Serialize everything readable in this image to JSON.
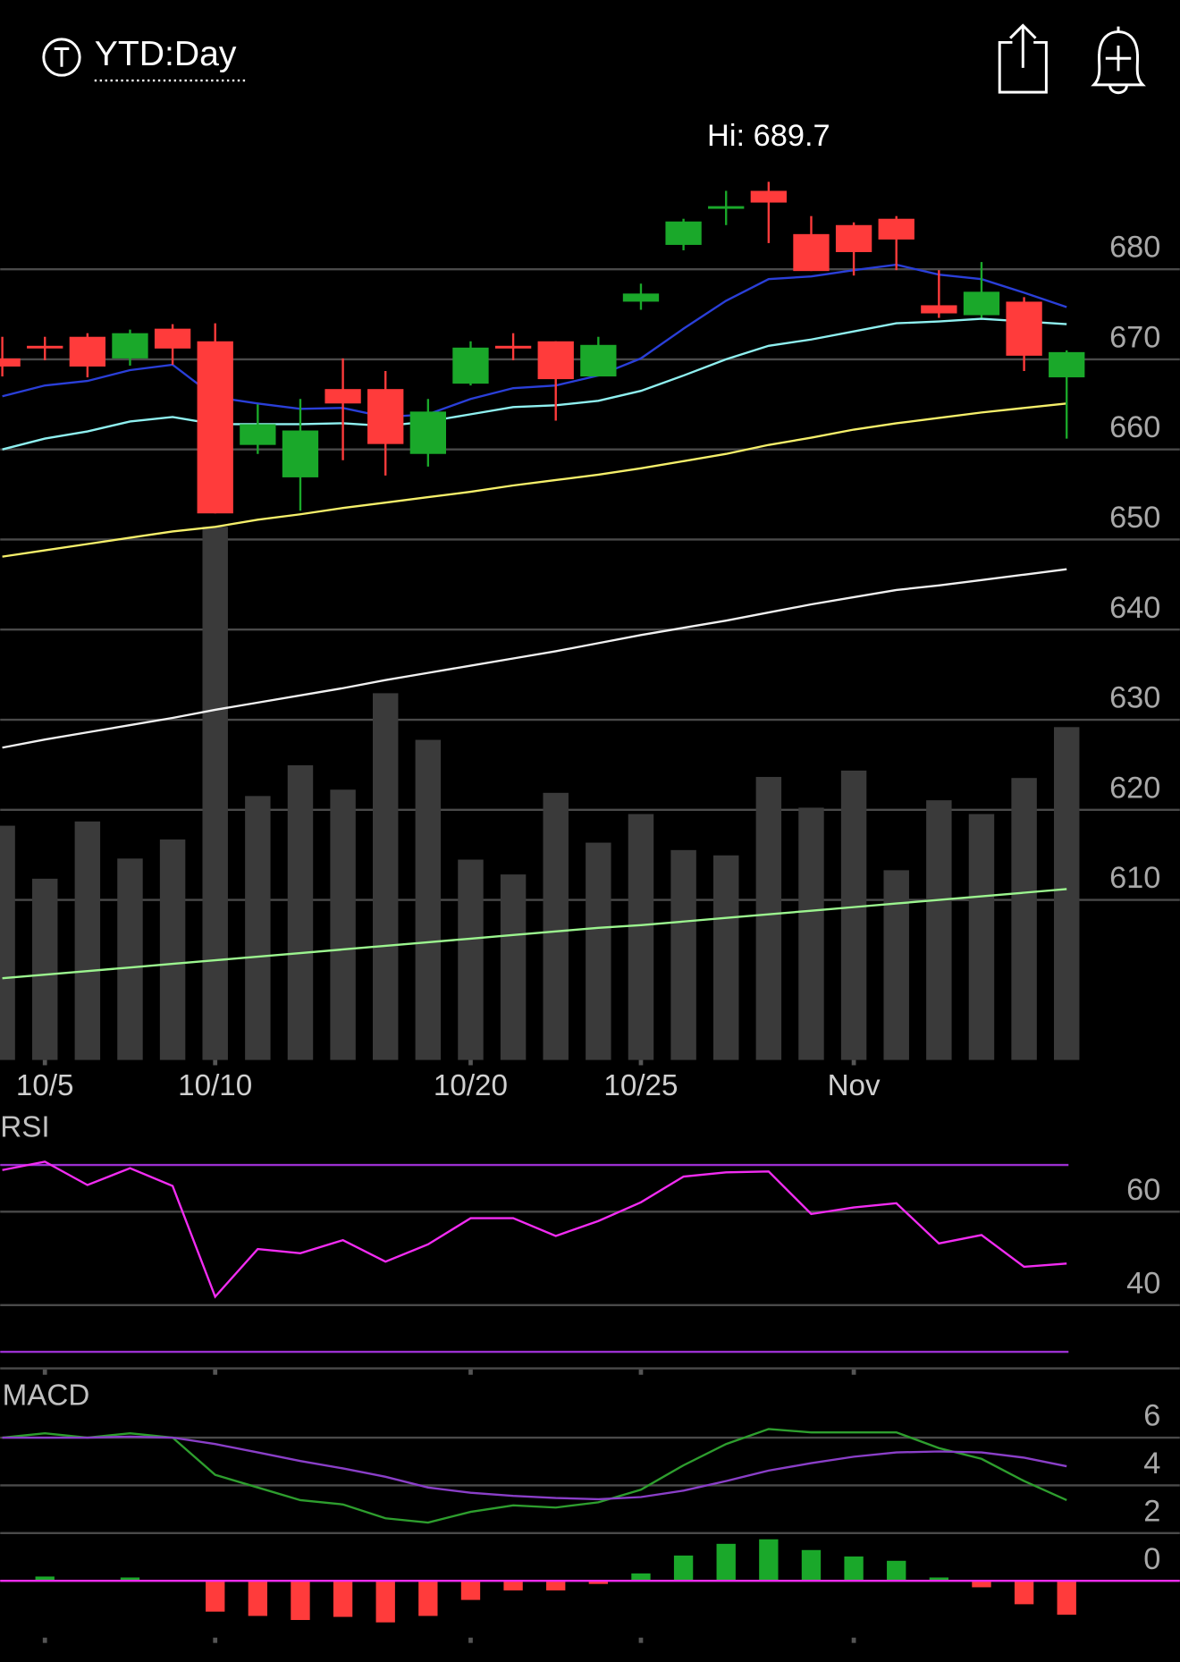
{
  "header": {
    "title": "YTD:Day"
  },
  "chart_data": [
    {
      "type": "candlestick",
      "annotation": "Hi: 689.7",
      "categories": [
        null,
        "10/5",
        null,
        null,
        null,
        "10/10",
        null,
        null,
        null,
        null,
        null,
        "10/20",
        null,
        null,
        null,
        "10/25",
        null,
        null,
        null,
        null,
        "Nov",
        null,
        null,
        null,
        null,
        null
      ],
      "open": [
        670.1,
        671.5,
        672.5,
        670.1,
        673.4,
        672.0,
        660.5,
        656.9,
        666.7,
        666.7,
        659.5,
        667.3,
        671.5,
        672.0,
        668.1,
        676.4,
        682.7,
        686.8,
        688.7,
        683.9,
        684.9,
        685.6,
        676.0,
        674.9,
        676.4,
        668.0
      ],
      "high": [
        672.5,
        672.5,
        672.9,
        673.3,
        673.9,
        674.0,
        665.0,
        665.6,
        670.1,
        668.7,
        665.6,
        672.0,
        672.9,
        672.0,
        672.5,
        678.4,
        685.6,
        688.7,
        689.7,
        685.9,
        685.2,
        685.9,
        679.9,
        680.8,
        676.9,
        671.0
      ],
      "low": [
        668.1,
        669.9,
        668.0,
        669.3,
        669.4,
        652.9,
        659.5,
        653.2,
        658.8,
        657.1,
        658.1,
        667.1,
        669.9,
        663.2,
        668.1,
        675.5,
        682.1,
        684.9,
        682.9,
        679.8,
        679.3,
        679.9,
        674.6,
        674.6,
        668.7,
        661.2
      ],
      "close": [
        669.2,
        671.3,
        669.2,
        672.9,
        671.2,
        652.9,
        662.8,
        662.1,
        665.1,
        660.6,
        664.2,
        671.3,
        671.2,
        667.8,
        671.6,
        677.3,
        685.3,
        687.0,
        687.4,
        679.8,
        681.9,
        683.3,
        675.1,
        677.5,
        670.4,
        670.8
      ],
      "up_color": "#1aa82a",
      "down_color": "#ff3b3b",
      "ylim": [
        592,
        692
      ],
      "yticks": [
        610,
        620,
        630,
        640,
        650,
        660,
        670,
        680
      ],
      "grid": true,
      "overlays": [
        {
          "color": "#2a3fd8",
          "values": [
            665.9,
            667.1,
            667.6,
            668.8,
            669.4,
            665.8,
            665.1,
            664.5,
            664.6,
            663.6,
            663.9,
            665.6,
            666.8,
            667.1,
            668.2,
            670.1,
            673.4,
            676.5,
            678.9,
            679.2,
            679.9,
            680.5,
            679.4,
            678.9,
            677.4,
            675.8
          ]
        },
        {
          "color": "#8ff0f0",
          "values": [
            660.0,
            661.2,
            662.0,
            663.1,
            663.6,
            662.8,
            662.8,
            662.8,
            662.9,
            662.6,
            663.1,
            663.9,
            664.7,
            664.9,
            665.4,
            666.5,
            668.2,
            670.0,
            671.5,
            672.2,
            673.1,
            674.0,
            674.2,
            674.5,
            674.2,
            673.9
          ]
        },
        {
          "color": "#f5ef6a",
          "values": [
            648.1,
            648.8,
            649.5,
            650.2,
            650.9,
            651.4,
            652.2,
            652.8,
            653.5,
            654.1,
            654.7,
            655.3,
            656.0,
            656.6,
            657.2,
            657.9,
            658.7,
            659.5,
            660.5,
            661.3,
            662.2,
            662.9,
            663.5,
            664.1,
            664.6,
            665.1
          ]
        },
        {
          "color": "#f0f0f0",
          "values": [
            626.9,
            627.8,
            628.6,
            629.4,
            630.2,
            631.1,
            631.9,
            632.7,
            633.5,
            634.4,
            635.2,
            636.0,
            636.8,
            637.6,
            638.5,
            639.4,
            640.2,
            641.0,
            641.9,
            642.8,
            643.6,
            644.4,
            644.9,
            645.5,
            646.1,
            646.7
          ]
        },
        {
          "color": "#9cf58f",
          "values": [
            601.3,
            601.7,
            602.1,
            602.5,
            602.9,
            603.3,
            603.7,
            604.1,
            604.5,
            604.9,
            605.3,
            605.7,
            606.1,
            606.5,
            606.9,
            607.2,
            607.6,
            608.0,
            608.4,
            608.8,
            609.2,
            609.6,
            610.0,
            610.4,
            610.8,
            611.2
          ]
        }
      ],
      "volume": {
        "color": "#3a3a3a",
        "values": [
          221,
          171,
          225,
          190,
          208,
          503,
          249,
          278,
          255,
          346,
          302,
          189,
          175,
          252,
          205,
          232,
          198,
          193,
          267,
          238,
          273,
          179,
          245,
          232,
          266,
          314
        ]
      }
    },
    {
      "type": "line",
      "title": "RSI",
      "series": [
        {
          "color": "#f22cf2",
          "values": [
            68.9,
            70.7,
            65.7,
            69.3,
            65.5,
            41.8,
            52.0,
            51.1,
            53.9,
            49.3,
            53.0,
            58.6,
            58.6,
            54.8,
            58.0,
            62.0,
            67.5,
            68.4,
            68.6,
            59.5,
            60.9,
            61.8,
            53.2,
            55.0,
            48.2,
            48.9
          ]
        }
      ],
      "bands": [
        30,
        70
      ],
      "band_color": "#9b30d0",
      "ylim": [
        26,
        75
      ],
      "yticks": [
        40,
        60
      ],
      "grid": true
    },
    {
      "type": "macd",
      "title": "MACD",
      "series": [
        {
          "color": "#2e9e2e",
          "values": [
            6.0,
            6.18,
            6.0,
            6.18,
            6.0,
            4.44,
            3.91,
            3.38,
            3.2,
            2.62,
            2.44,
            2.89,
            3.16,
            3.07,
            3.29,
            3.82,
            4.84,
            5.73,
            6.36,
            6.22,
            6.22,
            6.22,
            5.56,
            5.11,
            4.18,
            3.38
          ]
        },
        {
          "color": "#8a3fc8",
          "values": [
            6.0,
            6.0,
            6.0,
            6.04,
            6.0,
            5.73,
            5.38,
            5.02,
            4.71,
            4.36,
            3.91,
            3.69,
            3.56,
            3.47,
            3.42,
            3.51,
            3.78,
            4.18,
            4.62,
            4.93,
            5.2,
            5.38,
            5.42,
            5.38,
            5.16,
            4.8
          ]
        }
      ],
      "histogram": {
        "up_color": "#1aa82a",
        "down_color": "#ff3b3b",
        "values": [
          0,
          0.18,
          0,
          0.14,
          0,
          -1.29,
          -1.47,
          -1.64,
          -1.51,
          -1.74,
          -1.47,
          -0.8,
          -0.4,
          -0.4,
          -0.13,
          0.31,
          1.06,
          1.55,
          1.74,
          1.29,
          1.02,
          0.84,
          0.14,
          -0.27,
          -0.98,
          -1.42
        ]
      },
      "zero_color": "#f22cf2",
      "ylim": [
        -3.4,
        8.5
      ],
      "yticks": [
        0,
        2,
        4,
        6
      ],
      "grid": true
    }
  ]
}
